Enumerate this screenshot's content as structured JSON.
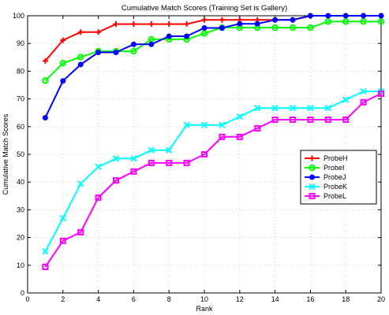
{
  "chart_data": {
    "type": "line",
    "title": "Cumulative Match Scores (Training Set is Gallery)",
    "xlabel": "Rank",
    "ylabel": "Cumulative Match Scores",
    "xlim": [
      0,
      20
    ],
    "ylim": [
      0,
      100
    ],
    "xticks": [
      0,
      2,
      4,
      6,
      8,
      10,
      12,
      14,
      16,
      18,
      20
    ],
    "yticks": [
      0,
      10,
      20,
      30,
      40,
      50,
      60,
      70,
      80,
      90,
      100
    ],
    "grid": true,
    "legend_position": "center-right",
    "x": [
      1,
      2,
      3,
      4,
      5,
      6,
      7,
      8,
      9,
      10,
      11,
      12,
      13,
      14,
      15,
      16,
      17,
      18,
      19,
      20
    ],
    "series": [
      {
        "name": "ProbeH",
        "color": "#ff0000",
        "marker": "plus",
        "values": [
          83.7,
          91.2,
          94.1,
          94.1,
          97.0,
          97.0,
          97.0,
          97.0,
          97.0,
          98.5,
          98.5,
          98.5,
          98.5,
          98.5,
          98.5,
          100,
          100,
          100,
          100,
          100
        ]
      },
      {
        "name": "ProbeI",
        "color": "#00ff00",
        "marker": "circle-open",
        "values": [
          76.6,
          82.9,
          85.1,
          87.2,
          87.2,
          87.2,
          91.5,
          91.5,
          91.5,
          93.6,
          95.7,
          95.7,
          95.7,
          95.7,
          95.7,
          95.7,
          97.9,
          97.9,
          97.9,
          97.9
        ]
      },
      {
        "name": "ProbeJ",
        "color": "#0000ff",
        "marker": "circle-filled",
        "values": [
          63.2,
          76.5,
          82.4,
          86.8,
          86.8,
          89.7,
          89.7,
          92.6,
          92.6,
          95.6,
          95.6,
          97.1,
          97.1,
          98.5,
          98.5,
          100,
          100,
          100,
          100,
          100
        ]
      },
      {
        "name": "ProbeK",
        "color": "#00ffff",
        "marker": "x",
        "values": [
          15.0,
          27.0,
          39.4,
          45.5,
          48.5,
          48.5,
          51.5,
          51.5,
          60.6,
          60.6,
          60.6,
          63.6,
          66.7,
          66.7,
          66.7,
          66.7,
          66.7,
          69.7,
          72.7,
          72.7
        ]
      },
      {
        "name": "ProbeL",
        "color": "#ff00ff",
        "marker": "square",
        "values": [
          9.4,
          18.8,
          21.9,
          34.4,
          40.6,
          43.8,
          46.9,
          46.9,
          46.9,
          50.0,
          56.3,
          56.3,
          59.4,
          62.5,
          62.5,
          62.5,
          62.5,
          62.5,
          68.8,
          71.9
        ]
      }
    ]
  }
}
